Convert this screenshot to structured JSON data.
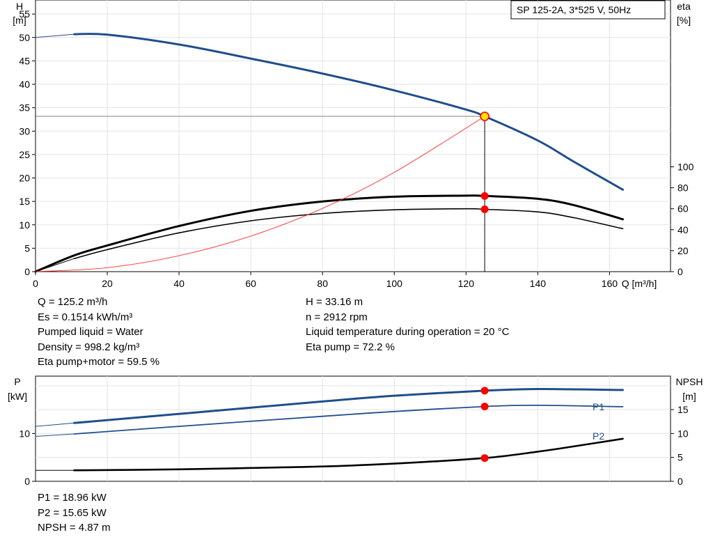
{
  "model_label": "SP 125-2A, 3*525 V, 50Hz",
  "top_chart": {
    "left_axis": {
      "name": "H",
      "unit": "[m]"
    },
    "right_axis": {
      "name": "eta",
      "unit": "[%]"
    },
    "x_axis": {
      "label": "Q [m³/h]"
    }
  },
  "bottom_chart": {
    "left_axis": {
      "name": "P",
      "unit": "[kW]"
    },
    "right_axis": {
      "name": "NPSH",
      "unit": "[m]"
    }
  },
  "info_left": [
    "Q = 125.2 m³/h",
    "Es = 0.1514 kWh/m³",
    "Pumped liquid = Water",
    "Density = 998.2 kg/m³",
    "Eta pump+motor = 59.5 %"
  ],
  "info_right": [
    "H = 33.16 m",
    "n = 2912 rpm",
    "Liquid temperature during operation = 20 °C",
    "Eta pump = 72.2 %"
  ],
  "info_bottom": [
    "P1 = 18.96 kW",
    "P2 = 15.65 kW",
    "NPSH = 4.87 m"
  ],
  "colors": {
    "head": "#1f4e8c",
    "power": "#1f4e8c",
    "system": "#ff2b2b",
    "eta": "#000000",
    "npsh": "#000000",
    "marker": "#ff0000",
    "duty_marker": "#ffe100"
  },
  "chart_data": [
    {
      "type": "line",
      "title": "",
      "xlabel": "Q [m³/h]",
      "xlim": [
        0,
        177
      ],
      "ylim_left": [
        0,
        58
      ],
      "ylim_right": [
        0,
        100
      ],
      "x_ticks": [
        0,
        20,
        40,
        60,
        80,
        100,
        120,
        140,
        160
      ],
      "y_left_ticks": [
        0,
        5,
        10,
        15,
        20,
        25,
        30,
        35,
        40,
        45,
        50,
        55
      ],
      "y_right_ticks": [
        0,
        20,
        40,
        60,
        80,
        100
      ],
      "grid": true,
      "series": [
        {
          "name": "H",
          "axis": "left",
          "x": [
            0,
            10.8,
            20,
            40,
            60,
            80,
            100,
            120,
            125.2,
            140,
            150,
            163.7
          ],
          "y": [
            50,
            50.7,
            50.6,
            48.5,
            45.5,
            42.3,
            38.7,
            34.6,
            33.16,
            28,
            23.5,
            17.5
          ],
          "extrapolated_to_x": 10.8
        },
        {
          "name": "eta pump+motor",
          "axis": "right",
          "x": [
            0,
            10.8,
            20,
            40,
            60,
            80,
            100,
            120,
            125.2,
            140,
            150,
            163.7
          ],
          "y": [
            0,
            12.5,
            21,
            37,
            48.5,
            55.5,
            59,
            60,
            59.5,
            57,
            51.5,
            41
          ],
          "extrapolated_to_x": 10.8
        },
        {
          "name": "eta pump",
          "axis": "right",
          "x": [
            0,
            10.8,
            20,
            40,
            60,
            80,
            100,
            120,
            125.2,
            140,
            150,
            163.7
          ],
          "y": [
            0,
            15.5,
            25,
            43.5,
            58,
            67,
            71.5,
            72.5,
            72.2,
            69.5,
            63.5,
            50
          ]
        },
        {
          "name": "system curve",
          "axis": "left",
          "x": [
            0,
            20,
            40,
            60,
            80,
            100,
            125.2
          ],
          "y": [
            0,
            0.85,
            3.4,
            7.6,
            13.5,
            21.2,
            33.16
          ]
        }
      ],
      "duty_point": {
        "x": 125.2,
        "H": 33.16,
        "eta_pump": 72.2,
        "eta_pump_motor": 59.5
      }
    },
    {
      "type": "line",
      "title": "",
      "xlim": [
        0,
        177
      ],
      "ylim_left": [
        0,
        22
      ],
      "ylim_right": [
        0,
        22
      ],
      "y_left_ticks": [
        0,
        10
      ],
      "y_right_ticks": [
        0,
        5,
        10,
        15
      ],
      "grid": true,
      "series": [
        {
          "name": "P1",
          "axis": "left",
          "x": [
            0,
            10.8,
            40,
            80,
            100,
            125.2,
            140,
            163.7
          ],
          "y": [
            11.5,
            12.2,
            14.1,
            16.7,
            17.9,
            18.96,
            19.3,
            19.1
          ],
          "extrapolated_to_x": 10.8
        },
        {
          "name": "P2",
          "axis": "left",
          "x": [
            0,
            10.8,
            40,
            80,
            100,
            125.2,
            140,
            163.7
          ],
          "y": [
            9.4,
            9.9,
            11.5,
            13.6,
            14.6,
            15.65,
            15.9,
            15.6
          ],
          "extrapolated_to_x": 10.8
        },
        {
          "name": "NPSH",
          "axis": "right",
          "x": [
            0,
            10.8,
            40,
            60,
            80,
            100,
            125.2,
            140,
            150,
            163.7
          ],
          "y": [
            2.3,
            2.3,
            2.5,
            2.8,
            3.1,
            3.7,
            4.87,
            6.2,
            7.3,
            8.9
          ],
          "extrapolated_to_x": 10.8
        }
      ],
      "duty_point": {
        "x": 125.2,
        "P1": 18.96,
        "P2": 15.65,
        "NPSH": 4.87
      }
    }
  ]
}
